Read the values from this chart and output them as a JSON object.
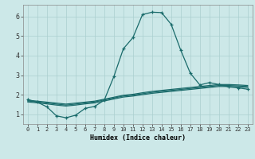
{
  "xlabel": "Humidex (Indice chaleur)",
  "xlim": [
    -0.5,
    23.5
  ],
  "ylim": [
    0.5,
    6.6
  ],
  "xticks": [
    0,
    1,
    2,
    3,
    4,
    5,
    6,
    7,
    8,
    9,
    10,
    11,
    12,
    13,
    14,
    15,
    16,
    17,
    18,
    19,
    20,
    21,
    22,
    23
  ],
  "yticks": [
    1,
    2,
    3,
    4,
    5,
    6
  ],
  "bg_color": "#cce8e8",
  "line_color": "#1a6b6b",
  "grid_color": "#aacfcf",
  "series": [
    {
      "x": [
        0,
        1,
        2,
        3,
        4,
        5,
        6,
        7,
        8,
        9,
        10,
        11,
        12,
        13,
        14,
        15,
        16,
        17,
        18,
        19,
        20,
        21,
        22,
        23
      ],
      "y": [
        1.75,
        1.62,
        1.38,
        0.92,
        0.82,
        0.95,
        1.3,
        1.4,
        1.72,
        2.92,
        4.35,
        4.92,
        6.1,
        6.22,
        6.2,
        5.6,
        4.28,
        3.1,
        2.5,
        2.62,
        2.52,
        2.4,
        2.35,
        2.28
      ],
      "marker": "+"
    },
    {
      "x": [
        0,
        1,
        2,
        3,
        4,
        5,
        6,
        7,
        8,
        9,
        10,
        11,
        12,
        13,
        14,
        15,
        16,
        17,
        18,
        19,
        20,
        21,
        22,
        23
      ],
      "y": [
        1.72,
        1.67,
        1.62,
        1.57,
        1.52,
        1.57,
        1.62,
        1.67,
        1.77,
        1.87,
        1.97,
        2.02,
        2.1,
        2.17,
        2.22,
        2.27,
        2.32,
        2.37,
        2.42,
        2.47,
        2.52,
        2.52,
        2.5,
        2.47
      ],
      "marker": null
    },
    {
      "x": [
        0,
        1,
        2,
        3,
        4,
        5,
        6,
        7,
        8,
        9,
        10,
        11,
        12,
        13,
        14,
        15,
        16,
        17,
        18,
        19,
        20,
        21,
        22,
        23
      ],
      "y": [
        1.68,
        1.63,
        1.58,
        1.52,
        1.47,
        1.52,
        1.58,
        1.63,
        1.73,
        1.83,
        1.93,
        1.98,
        2.05,
        2.12,
        2.17,
        2.22,
        2.27,
        2.32,
        2.37,
        2.42,
        2.47,
        2.47,
        2.45,
        2.42
      ],
      "marker": null
    },
    {
      "x": [
        0,
        1,
        2,
        3,
        4,
        5,
        6,
        7,
        8,
        9,
        10,
        11,
        12,
        13,
        14,
        15,
        16,
        17,
        18,
        19,
        20,
        21,
        22,
        23
      ],
      "y": [
        1.63,
        1.58,
        1.53,
        1.47,
        1.42,
        1.47,
        1.53,
        1.58,
        1.68,
        1.78,
        1.88,
        1.93,
        2.0,
        2.07,
        2.12,
        2.17,
        2.22,
        2.27,
        2.32,
        2.37,
        2.42,
        2.42,
        2.4,
        2.37
      ],
      "marker": null
    }
  ]
}
